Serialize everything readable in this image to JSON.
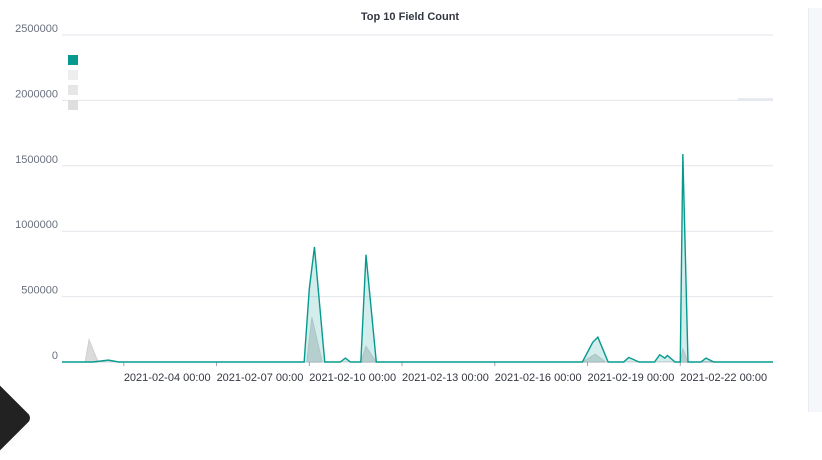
{
  "chart_data": {
    "type": "area",
    "title": "Top 10 Field Count",
    "xlabel": "",
    "ylabel": "",
    "x_start": "2021-02-02",
    "x_end": "2021-02-25",
    "x_ticks": [
      "2021-02-04 00:00",
      "2021-02-07 00:00",
      "2021-02-10 00:00",
      "2021-02-13 00:00",
      "2021-02-16 00:00",
      "2021-02-19 00:00",
      "2021-02-22 00:00"
    ],
    "y_ticks": [
      "0",
      "500000",
      "1000000",
      "1500000",
      "2000000",
      "2500000"
    ],
    "ylim": [
      0,
      2500000
    ],
    "grid": true,
    "legend": {
      "position": "top-left",
      "colors": [
        "#069a8e",
        "#eeeeee",
        "#e6e6e6",
        "#dedede"
      ]
    },
    "series": [
      {
        "color": "#069a8e",
        "points": [
          [
            "2021-02-02",
            0
          ],
          [
            "2021-02-03",
            0
          ],
          [
            "2021-02-03 12:00",
            15000
          ],
          [
            "2021-02-03 20:00",
            0
          ],
          [
            "2021-02-09 20:00",
            0
          ],
          [
            "2021-02-10 00:00",
            560000
          ],
          [
            "2021-02-10 04:00",
            880000
          ],
          [
            "2021-02-10 12:00",
            0
          ],
          [
            "2021-02-11 00:00",
            0
          ],
          [
            "2021-02-11 04:00",
            30000
          ],
          [
            "2021-02-11 08:00",
            0
          ],
          [
            "2021-02-11 16:00",
            0
          ],
          [
            "2021-02-11 20:00",
            820000
          ],
          [
            "2021-02-12 04:00",
            0
          ],
          [
            "2021-02-18 20:00",
            0
          ],
          [
            "2021-02-19 04:00",
            150000
          ],
          [
            "2021-02-19 08:00",
            190000
          ],
          [
            "2021-02-19 16:00",
            0
          ],
          [
            "2021-02-20 04:00",
            0
          ],
          [
            "2021-02-20 08:00",
            35000
          ],
          [
            "2021-02-20 16:00",
            0
          ],
          [
            "2021-02-21 04:00",
            0
          ],
          [
            "2021-02-21 08:00",
            55000
          ],
          [
            "2021-02-21 12:00",
            30000
          ],
          [
            "2021-02-21 14:00",
            50000
          ],
          [
            "2021-02-21 20:00",
            0
          ],
          [
            "2021-02-22 00:00",
            0
          ],
          [
            "2021-02-22 02:00",
            1590000
          ],
          [
            "2021-02-22 06:00",
            0
          ],
          [
            "2021-02-22 16:00",
            0
          ],
          [
            "2021-02-22 20:00",
            30000
          ],
          [
            "2021-02-23 02:00",
            0
          ],
          [
            "2021-02-25",
            0
          ]
        ]
      },
      {
        "color": "#cfcfcf",
        "points": [
          [
            "2021-02-02 18:00",
            0
          ],
          [
            "2021-02-02 21:00",
            170000
          ],
          [
            "2021-02-03 04:00",
            0
          ],
          [
            "2021-02-09 22:00",
            0
          ],
          [
            "2021-02-10 02:00",
            340000
          ],
          [
            "2021-02-10 10:00",
            0
          ],
          [
            "2021-02-11 16:00",
            0
          ],
          [
            "2021-02-11 20:00",
            120000
          ],
          [
            "2021-02-12 04:00",
            0
          ],
          [
            "2021-02-18 20:00",
            0
          ],
          [
            "2021-02-19 06:00",
            60000
          ],
          [
            "2021-02-19 14:00",
            0
          ],
          [
            "2021-02-22 00:00",
            0
          ],
          [
            "2021-02-22 02:00",
            100000
          ],
          [
            "2021-02-22 06:00",
            0
          ]
        ]
      }
    ]
  }
}
